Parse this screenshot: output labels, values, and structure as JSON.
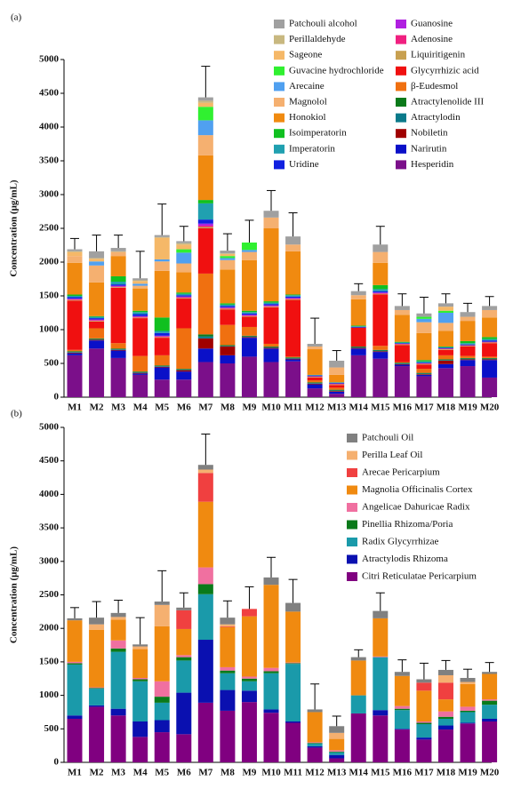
{
  "chart_data": [
    {
      "type": "bar",
      "stacked": true,
      "panel_label": "(a)",
      "ylabel": "Concentration (μg/mL)",
      "categories": [
        "M1",
        "M2",
        "M3",
        "M4",
        "M5",
        "M6",
        "M7",
        "M8",
        "M9",
        "M10",
        "M11",
        "M12",
        "M13",
        "M14",
        "M15",
        "M16",
        "M17",
        "M18",
        "M19",
        "M20"
      ],
      "ylim": [
        0,
        5000
      ],
      "yticks": [
        0,
        500,
        1000,
        1500,
        2000,
        2500,
        3000,
        3500,
        4000,
        4500,
        5000
      ],
      "errors": [
        160,
        240,
        190,
        400,
        460,
        220,
        460,
        250,
        330,
        300,
        350,
        380,
        150,
        110,
        270,
        180,
        240,
        140,
        130,
        140
      ],
      "series": [
        {
          "name": "Hesperidin",
          "color": "#7b0f8a",
          "values": [
            620,
            720,
            580,
            330,
            260,
            260,
            520,
            500,
            600,
            520,
            530,
            130,
            50,
            620,
            570,
            460,
            310,
            430,
            460,
            290
          ]
        },
        {
          "name": "Narirutin",
          "color": "#0a10c8",
          "values": [
            30,
            120,
            110,
            20,
            180,
            120,
            200,
            120,
            280,
            200,
            30,
            60,
            30,
            100,
            100,
            20,
            20,
            60,
            90,
            260
          ]
        },
        {
          "name": "Nobiletin",
          "color": "#a00000",
          "values": [
            10,
            10,
            10,
            10,
            10,
            20,
            150,
            130,
            10,
            10,
            10,
            10,
            10,
            10,
            10,
            10,
            10,
            50,
            10,
            10
          ]
        },
        {
          "name": "Atractylodin",
          "color": "#0a7a8a",
          "values": [
            10,
            10,
            10,
            10,
            10,
            10,
            30,
            10,
            10,
            10,
            10,
            10,
            10,
            10,
            10,
            10,
            10,
            10,
            10,
            10
          ]
        },
        {
          "name": "Atractylenolide III",
          "color": "#0a7a1a",
          "values": [
            10,
            10,
            10,
            10,
            10,
            10,
            30,
            10,
            10,
            10,
            10,
            10,
            10,
            10,
            10,
            10,
            10,
            10,
            10,
            10
          ]
        },
        {
          "name": "β-Eudesmol",
          "color": "#f07010",
          "values": [
            20,
            150,
            80,
            230,
            150,
            600,
            900,
            300,
            130,
            40,
            10,
            30,
            30,
            0,
            60,
            10,
            60,
            60,
            30,
            20
          ]
        },
        {
          "name": "Glycyrrhizic acid",
          "color": "#f01010",
          "values": [
            730,
            100,
            820,
            560,
            260,
            440,
            670,
            230,
            150,
            540,
            840,
            40,
            40,
            280,
            760,
            250,
            60,
            80,
            140,
            200
          ]
        },
        {
          "name": "Liquiritigenin",
          "color": "#c8a050",
          "values": [
            10,
            10,
            10,
            10,
            10,
            10,
            20,
            10,
            10,
            10,
            10,
            10,
            10,
            0,
            10,
            10,
            10,
            10,
            10,
            10
          ]
        },
        {
          "name": "Adenosine",
          "color": "#f02080",
          "values": [
            10,
            10,
            10,
            10,
            10,
            10,
            20,
            10,
            10,
            10,
            10,
            10,
            10,
            0,
            10,
            10,
            10,
            10,
            10,
            10
          ]
        },
        {
          "name": "Guanosine",
          "color": "#b020e0",
          "values": [
            10,
            10,
            10,
            10,
            10,
            10,
            30,
            10,
            10,
            10,
            10,
            0,
            0,
            0,
            10,
            0,
            0,
            0,
            0,
            0
          ]
        },
        {
          "name": "Uridine",
          "color": "#1020e0",
          "values": [
            20,
            20,
            20,
            30,
            40,
            20,
            60,
            20,
            20,
            20,
            20,
            10,
            10,
            10,
            20,
            10,
            10,
            10,
            10,
            20
          ]
        },
        {
          "name": "Imperatorin",
          "color": "#20a0b0",
          "values": [
            20,
            20,
            40,
            30,
            30,
            20,
            240,
            20,
            20,
            20,
            20,
            10,
            10,
            10,
            30,
            10,
            20,
            10,
            20,
            20
          ]
        },
        {
          "name": "Isoimperatorin",
          "color": "#10c020",
          "values": [
            20,
            10,
            80,
            20,
            200,
            20,
            50,
            20,
            20,
            20,
            10,
            0,
            0,
            10,
            60,
            10,
            20,
            10,
            30,
            30
          ]
        },
        {
          "name": "Honokiol",
          "color": "#f08a10",
          "values": [
            470,
            500,
            300,
            330,
            690,
            300,
            660,
            500,
            750,
            1080,
            640,
            380,
            110,
            390,
            330,
            400,
            400,
            230,
            300,
            290
          ]
        },
        {
          "name": "Magnolol",
          "color": "#f5b070",
          "values": [
            100,
            250,
            60,
            40,
            140,
            130,
            300,
            140,
            120,
            160,
            100,
            40,
            110,
            60,
            160,
            70,
            160,
            120,
            60,
            110
          ]
        },
        {
          "name": "Arecaine",
          "color": "#50a0f0",
          "values": [
            0,
            60,
            0,
            30,
            30,
            160,
            220,
            30,
            30,
            0,
            0,
            0,
            0,
            0,
            0,
            0,
            50,
            150,
            0,
            0
          ]
        },
        {
          "name": "Guvacine hydrochloride",
          "color": "#30f030",
          "values": [
            0,
            0,
            0,
            0,
            0,
            50,
            200,
            30,
            110,
            0,
            0,
            0,
            0,
            0,
            0,
            0,
            30,
            30,
            0,
            0
          ]
        },
        {
          "name": "Sageone",
          "color": "#f5b868",
          "values": [
            60,
            40,
            0,
            40,
            320,
            70,
            60,
            30,
            0,
            0,
            0,
            0,
            0,
            0,
            0,
            0,
            0,
            60,
            0,
            0
          ]
        },
        {
          "name": "Perillaldehyde",
          "color": "#c8b880",
          "values": [
            10,
            10,
            10,
            10,
            10,
            20,
            30,
            10,
            0,
            0,
            0,
            0,
            0,
            0,
            0,
            0,
            0,
            0,
            0,
            0
          ]
        },
        {
          "name": "Patchouli alcohol",
          "color": "#a0a0a0",
          "values": [
            30,
            100,
            50,
            30,
            30,
            30,
            50,
            40,
            0,
            100,
            120,
            40,
            100,
            60,
            110,
            60,
            50,
            50,
            70,
            60
          ]
        }
      ]
    },
    {
      "type": "bar",
      "stacked": true,
      "panel_label": "(b)",
      "ylabel": "Concentration (μg/mL)",
      "categories": [
        "M1",
        "M2",
        "M3",
        "M4",
        "M5",
        "M6",
        "M7",
        "M8",
        "M9",
        "M10",
        "M11",
        "M12",
        "M13",
        "M14",
        "M15",
        "M16",
        "M17",
        "M18",
        "M19",
        "M20"
      ],
      "ylim": [
        0,
        5000
      ],
      "yticks": [
        0,
        500,
        1000,
        1500,
        2000,
        2500,
        3000,
        3500,
        4000,
        4500,
        5000
      ],
      "errors": [
        160,
        240,
        190,
        400,
        460,
        220,
        460,
        250,
        330,
        300,
        350,
        380,
        150,
        110,
        270,
        180,
        240,
        140,
        130,
        140
      ],
      "series": [
        {
          "name": "Citri Reticulatae Pericarpium",
          "color": "#800080",
          "values": [
            650,
            830,
            700,
            380,
            450,
            420,
            890,
            770,
            900,
            740,
            590,
            220,
            60,
            730,
            700,
            490,
            340,
            490,
            580,
            610
          ]
        },
        {
          "name": "Atractylodis Rhizoma",
          "color": "#0a10b0",
          "values": [
            50,
            20,
            100,
            230,
            180,
            620,
            940,
            310,
            170,
            50,
            20,
            20,
            50,
            0,
            80,
            10,
            30,
            60,
            10,
            40
          ]
        },
        {
          "name": "Radix Glycyrrhizae",
          "color": "#1a9aaa",
          "values": [
            760,
            250,
            850,
            600,
            260,
            480,
            680,
            250,
            140,
            540,
            860,
            40,
            40,
            270,
            790,
            280,
            200,
            100,
            160,
            210
          ]
        },
        {
          "name": "Pinellia Rhizoma/Poria",
          "color": "#0a7a1a",
          "values": [
            20,
            10,
            50,
            30,
            90,
            50,
            150,
            40,
            40,
            30,
            10,
            10,
            10,
            0,
            0,
            20,
            20,
            30,
            20,
            60
          ]
        },
        {
          "name": "Angelicae Dahuricae Radix",
          "color": "#f070a0",
          "values": [
            20,
            10,
            120,
            20,
            230,
            30,
            250,
            50,
            30,
            50,
            10,
            10,
            20,
            0,
            10,
            40,
            20,
            80,
            60,
            20
          ]
        },
        {
          "name": "Magnolia Officinalis Cortex",
          "color": "#f08a10",
          "values": [
            620,
            860,
            310,
            430,
            820,
            390,
            980,
            600,
            900,
            1240,
            760,
            450,
            170,
            520,
            570,
            450,
            460,
            180,
            340,
            380
          ]
        },
        {
          "name": "Arecae Pericarpium",
          "color": "#f04040",
          "values": [
            0,
            0,
            0,
            0,
            0,
            280,
            430,
            10,
            110,
            0,
            0,
            0,
            0,
            0,
            0,
            0,
            120,
            250,
            0,
            0
          ]
        },
        {
          "name": "Perilla Leaf Oil",
          "color": "#f5b070",
          "values": [
            0,
            80,
            40,
            40,
            320,
            0,
            50,
            30,
            0,
            0,
            0,
            0,
            90,
            0,
            0,
            0,
            0,
            110,
            30,
            0
          ]
        },
        {
          "name": "Patchouli Oil",
          "color": "#808080",
          "values": [
            30,
            100,
            60,
            30,
            50,
            40,
            70,
            100,
            0,
            110,
            130,
            40,
            100,
            50,
            110,
            60,
            50,
            80,
            60,
            30
          ]
        }
      ]
    }
  ]
}
